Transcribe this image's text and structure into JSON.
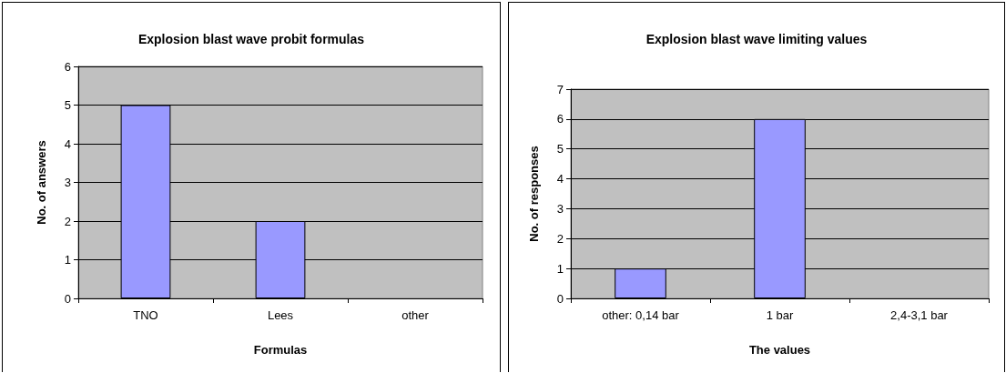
{
  "chart_data": [
    {
      "type": "bar",
      "title": "Explosion blast wave probit formulas",
      "xlabel": "Formulas",
      "ylabel": "No. of answers",
      "categories": [
        "TNO",
        "Lees",
        "other"
      ],
      "values": [
        5,
        2,
        0
      ],
      "color": "#9999ff",
      "ylim": [
        0,
        6
      ],
      "yticks": [
        0,
        1,
        2,
        3,
        4,
        5,
        6
      ],
      "grid": "y"
    },
    {
      "type": "bar",
      "title": "Explosion blast wave limiting values",
      "xlabel": "The values",
      "ylabel": "No. of responses",
      "categories": [
        "other: 0,14 bar",
        "1 bar",
        "2,4-3,1 bar"
      ],
      "values": [
        1,
        6,
        0
      ],
      "color": "#9999ff",
      "ylim": [
        0,
        7
      ],
      "yticks": [
        0,
        1,
        2,
        3,
        4,
        5,
        6,
        7
      ],
      "grid": "y"
    }
  ]
}
